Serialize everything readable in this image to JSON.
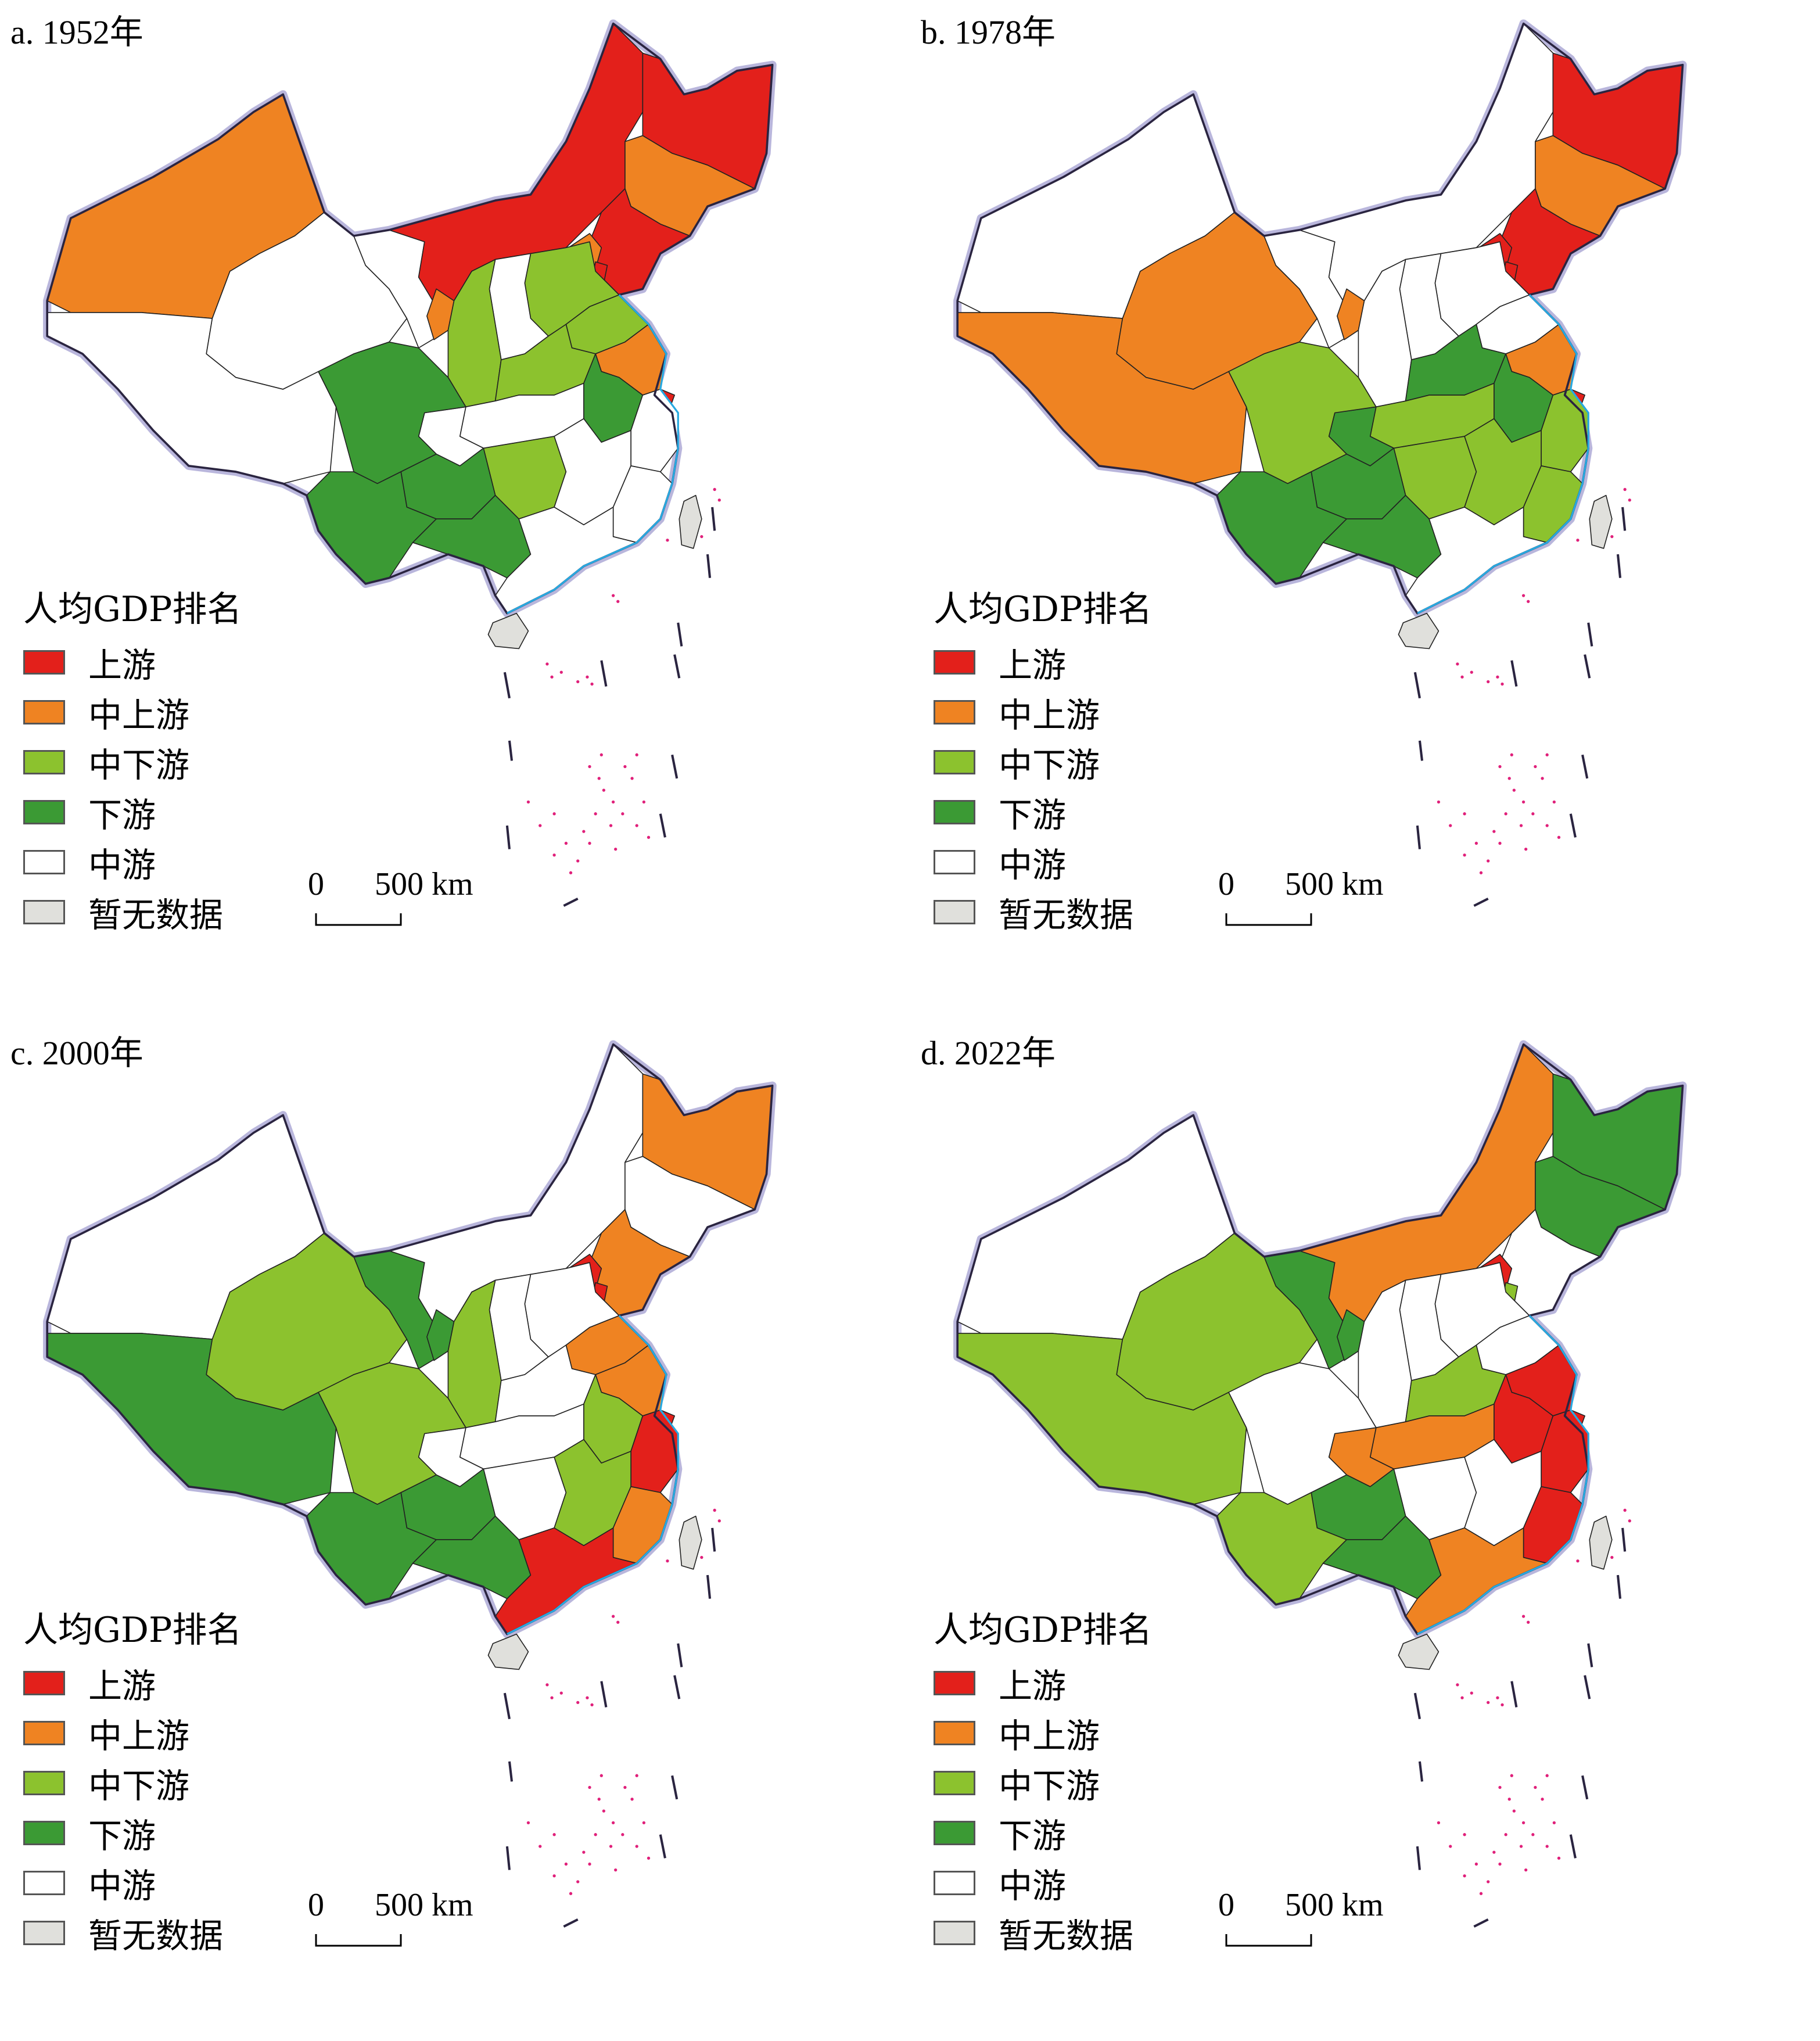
{
  "legend": {
    "title": "人均GDP排名",
    "items": [
      {
        "label": "上游",
        "color": "#e3201b"
      },
      {
        "label": "中上游",
        "color": "#ef8322"
      },
      {
        "label": "中下游",
        "color": "#8cc22e"
      },
      {
        "label": "下游",
        "color": "#3b9a34"
      },
      {
        "label": "中游",
        "color": "#ffffff"
      },
      {
        "label": "暂无数据",
        "color": "#e0e0dc"
      }
    ]
  },
  "scale": {
    "zero": "0",
    "distance": "500 km"
  },
  "panels": [
    {
      "title": "a. 1952年",
      "regions": {
        "xinjiang": "中上游",
        "tibet": "中游",
        "qinghai": "中游",
        "gansu_w": "中游",
        "neimenggu": "上游",
        "heilongjiang": "上游",
        "jilin": "中上游",
        "liaoning": "上游",
        "beijing": "中上游",
        "tianjin": "上游",
        "ningxia": "中上游",
        "sichuan": "下游",
        "yunnan": "下游",
        "guizhou": "下游",
        "guangxi": "下游",
        "shaanxi": "中下游",
        "henan": "中下游",
        "hebei": "中下游",
        "shandong": "中下游",
        "anhui": "下游",
        "hubei": "中游",
        "hunan": "中下游",
        "jiangsu": "中上游",
        "shanghai": "上游",
        "zhejiang": "中游",
        "fujian": "中游",
        "guangdong": "中游",
        "jiangxi": "中游",
        "shanxi": "中游",
        "hainan": "暂无数据",
        "taiwan": "暂无数据",
        "chongqing": "中游"
      }
    },
    {
      "title": "b. 1978年",
      "regions": {
        "xinjiang": "中游",
        "tibet": "中上游",
        "qinghai": "中上游",
        "gansu_w": "中游",
        "neimenggu": "中游",
        "heilongjiang": "上游",
        "jilin": "中上游",
        "liaoning": "上游",
        "beijing": "上游",
        "tianjin": "上游",
        "ningxia": "中上游",
        "sichuan": "中下游",
        "yunnan": "下游",
        "guizhou": "下游",
        "guangxi": "下游",
        "shaanxi": "中游",
        "henan": "下游",
        "hebei": "中游",
        "shandong": "中游",
        "anhui": "下游",
        "hubei": "中下游",
        "hunan": "中下游",
        "jiangsu": "中上游",
        "shanghai": "上游",
        "zhejiang": "中下游",
        "fujian": "中下游",
        "guangdong": "中游",
        "jiangxi": "中下游",
        "shanxi": "中游",
        "hainan": "暂无数据",
        "taiwan": "暂无数据",
        "chongqing": "下游"
      }
    },
    {
      "title": "c. 2000年",
      "regions": {
        "xinjiang": "中游",
        "tibet": "下游",
        "qinghai": "中下游",
        "gansu_w": "下游",
        "neimenggu": "中游",
        "heilongjiang": "中上游",
        "jilin": "中游",
        "liaoning": "中上游",
        "beijing": "上游",
        "tianjin": "上游",
        "ningxia": "下游",
        "sichuan": "中下游",
        "yunnan": "下游",
        "guizhou": "下游",
        "guangxi": "下游",
        "shaanxi": "中下游",
        "henan": "中游",
        "hebei": "中游",
        "shandong": "中上游",
        "anhui": "中下游",
        "hubei": "中游",
        "hunan": "中游",
        "jiangsu": "中上游",
        "shanghai": "上游",
        "zhejiang": "上游",
        "fujian": "中上游",
        "guangdong": "上游",
        "jiangxi": "中下游",
        "shanxi": "中游",
        "hainan": "暂无数据",
        "taiwan": "暂无数据",
        "chongqing": "中游"
      }
    },
    {
      "title": "d. 2022年",
      "regions": {
        "xinjiang": "中游",
        "tibet": "中下游",
        "qinghai": "中下游",
        "gansu_w": "下游",
        "neimenggu": "中上游",
        "heilongjiang": "下游",
        "jilin": "下游",
        "liaoning": "中游",
        "beijing": "上游",
        "tianjin": "中下游",
        "ningxia": "下游",
        "sichuan": "中游",
        "yunnan": "中下游",
        "guizhou": "下游",
        "guangxi": "下游",
        "shaanxi": "中游",
        "henan": "中下游",
        "hebei": "中游",
        "shandong": "中游",
        "anhui": "上游",
        "hubei": "中上游",
        "hunan": "中游",
        "jiangsu": "上游",
        "shanghai": "上游",
        "zhejiang": "上游",
        "fujian": "上游",
        "guangdong": "中上游",
        "jiangxi": "中游",
        "shanxi": "中游",
        "hainan": "暂无数据",
        "taiwan": "暂无数据",
        "chongqing": "中上游"
      }
    }
  ]
}
